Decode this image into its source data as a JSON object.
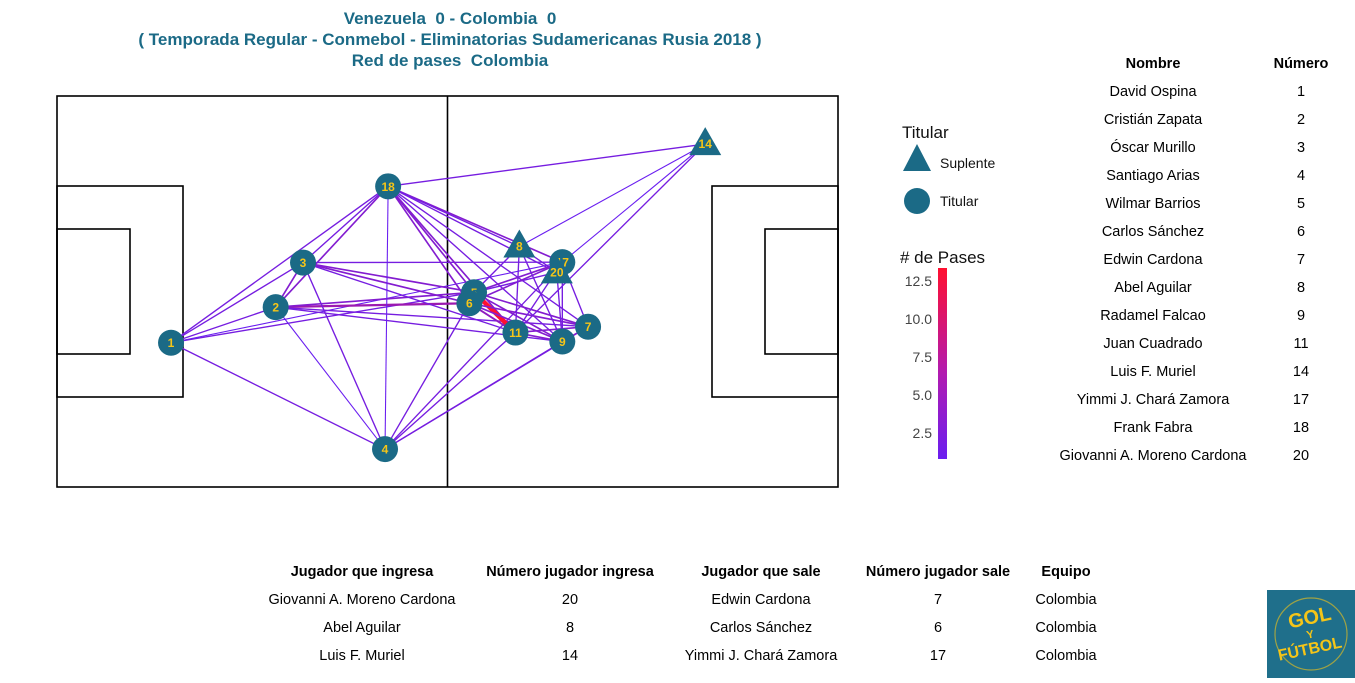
{
  "titles": {
    "line1": "Venezuela  0 - Colombia  0",
    "line2": "( Temporada Regular - Conmebol - Eliminatorias Sudamericanas Rusia 2018 )",
    "line3": "Red de pases  Colombia"
  },
  "legend": {
    "shape_title": "Titular",
    "suplente_label": "Suplente",
    "titular_label": "Titular",
    "color_title": "# de Pases",
    "ticks": [
      "12.5",
      "10.0",
      "7.5",
      "5.0",
      "2.5"
    ]
  },
  "colors": {
    "node": "#1b6a86",
    "node_label": "#f5c518",
    "title": "#1b6a86",
    "low_passes": "#6a1ef0",
    "high_passes": "#ff1030"
  },
  "roster": {
    "headers": [
      "Nombre",
      "Número"
    ],
    "rows": [
      [
        "David Ospina",
        "1"
      ],
      [
        "Cristián Zapata",
        "2"
      ],
      [
        "Óscar  Murillo",
        "3"
      ],
      [
        "Santiago Arias",
        "4"
      ],
      [
        "Wilmar Barrios",
        "5"
      ],
      [
        "Carlos Sánchez",
        "6"
      ],
      [
        "Edwin Cardona",
        "7"
      ],
      [
        "Abel Aguilar",
        "8"
      ],
      [
        "Radamel Falcao",
        "9"
      ],
      [
        "Juan Cuadrado",
        "11"
      ],
      [
        "Luis F. Muriel",
        "14"
      ],
      [
        "Yimmi J. Chará Zamora",
        "17"
      ],
      [
        "Frank Fabra",
        "18"
      ],
      [
        "Giovanni A. Moreno Cardona",
        "20"
      ]
    ]
  },
  "subs": {
    "headers": [
      "Jugador que ingresa",
      "Número jugador ingresa",
      "Jugador que sale",
      "Número jugador sale",
      "Equipo"
    ],
    "rows": [
      [
        "Giovanni A. Moreno Cardona",
        "20",
        "Edwin Cardona",
        "7",
        "Colombia"
      ],
      [
        "Abel Aguilar",
        "8",
        "Carlos Sánchez",
        "6",
        "Colombia"
      ],
      [
        "Luis F. Muriel",
        "14",
        "Yimmi J. Chará Zamora",
        "17",
        "Colombia"
      ]
    ]
  },
  "logo_text": "GOL Y FÚTBOL",
  "chart_data": {
    "type": "network",
    "pitch": {
      "length": 100,
      "width": 100
    },
    "color_scale": {
      "min": 1,
      "max": 13,
      "ticks": [
        2.5,
        5.0,
        7.5,
        10.0,
        12.5
      ]
    },
    "nodes": [
      {
        "id": "1",
        "x": 14.6,
        "y": 36.9,
        "role": "Titular"
      },
      {
        "id": "2",
        "x": 28.0,
        "y": 46.0,
        "role": "Titular"
      },
      {
        "id": "3",
        "x": 31.5,
        "y": 57.4,
        "role": "Titular"
      },
      {
        "id": "4",
        "x": 42.0,
        "y": 9.7,
        "role": "Titular"
      },
      {
        "id": "5",
        "x": 53.4,
        "y": 49.8,
        "role": "Titular"
      },
      {
        "id": "6",
        "x": 52.8,
        "y": 47.0,
        "role": "Titular"
      },
      {
        "id": "7",
        "x": 68.0,
        "y": 41.0,
        "role": "Titular"
      },
      {
        "id": "8",
        "x": 59.2,
        "y": 61.5,
        "role": "Suplente"
      },
      {
        "id": "9",
        "x": 64.7,
        "y": 37.2,
        "role": "Titular"
      },
      {
        "id": "11",
        "x": 58.7,
        "y": 39.5,
        "role": "Titular"
      },
      {
        "id": "14",
        "x": 83.0,
        "y": 87.7,
        "role": "Suplente"
      },
      {
        "id": "17",
        "x": 64.7,
        "y": 57.5,
        "role": "Titular"
      },
      {
        "id": "18",
        "x": 42.4,
        "y": 76.9,
        "role": "Titular"
      },
      {
        "id": "20",
        "x": 64.0,
        "y": 54.9,
        "role": "Suplente"
      }
    ],
    "edges": [
      {
        "from": "1",
        "to": "3",
        "passes": 2
      },
      {
        "from": "1",
        "to": "2",
        "passes": 2
      },
      {
        "from": "1",
        "to": "18",
        "passes": 2
      },
      {
        "from": "1",
        "to": "4",
        "passes": 2
      },
      {
        "from": "1",
        "to": "5",
        "passes": 2
      },
      {
        "from": "1",
        "to": "17",
        "passes": 1
      },
      {
        "from": "2",
        "to": "3",
        "passes": 3
      },
      {
        "from": "2",
        "to": "18",
        "passes": 3
      },
      {
        "from": "2",
        "to": "6",
        "passes": 5
      },
      {
        "from": "2",
        "to": "5",
        "passes": 3
      },
      {
        "from": "2",
        "to": "9",
        "passes": 2
      },
      {
        "from": "2",
        "to": "4",
        "passes": 1
      },
      {
        "from": "2",
        "to": "7",
        "passes": 2
      },
      {
        "from": "3",
        "to": "18",
        "passes": 2
      },
      {
        "from": "3",
        "to": "5",
        "passes": 3
      },
      {
        "from": "3",
        "to": "6",
        "passes": 3
      },
      {
        "from": "3",
        "to": "11",
        "passes": 2
      },
      {
        "from": "3",
        "to": "4",
        "passes": 2
      },
      {
        "from": "3",
        "to": "17",
        "passes": 2
      },
      {
        "from": "4",
        "to": "11",
        "passes": 2
      },
      {
        "from": "4",
        "to": "9",
        "passes": 2
      },
      {
        "from": "4",
        "to": "7",
        "passes": 2
      },
      {
        "from": "4",
        "to": "6",
        "passes": 2
      },
      {
        "from": "4",
        "to": "18",
        "passes": 1
      },
      {
        "from": "4",
        "to": "17",
        "passes": 2
      },
      {
        "from": "18",
        "to": "5",
        "passes": 3
      },
      {
        "from": "18",
        "to": "6",
        "passes": 3
      },
      {
        "from": "18",
        "to": "11",
        "passes": 3
      },
      {
        "from": "18",
        "to": "9",
        "passes": 2
      },
      {
        "from": "18",
        "to": "17",
        "passes": 3
      },
      {
        "from": "18",
        "to": "14",
        "passes": 2
      },
      {
        "from": "18",
        "to": "8",
        "passes": 2
      },
      {
        "from": "18",
        "to": "20",
        "passes": 2
      },
      {
        "from": "18",
        "to": "7",
        "passes": 2
      },
      {
        "from": "5",
        "to": "11",
        "passes": 13
      },
      {
        "from": "5",
        "to": "6",
        "passes": 4
      },
      {
        "from": "5",
        "to": "9",
        "passes": 3
      },
      {
        "from": "5",
        "to": "7",
        "passes": 3
      },
      {
        "from": "5",
        "to": "17",
        "passes": 3
      },
      {
        "from": "5",
        "to": "8",
        "passes": 2
      },
      {
        "from": "5",
        "to": "20",
        "passes": 2
      },
      {
        "from": "6",
        "to": "11",
        "passes": 4
      },
      {
        "from": "6",
        "to": "17",
        "passes": 3
      },
      {
        "from": "6",
        "to": "9",
        "passes": 3
      },
      {
        "from": "6",
        "to": "7",
        "passes": 3
      },
      {
        "from": "11",
        "to": "9",
        "passes": 3
      },
      {
        "from": "11",
        "to": "7",
        "passes": 3
      },
      {
        "from": "11",
        "to": "17",
        "passes": 2
      },
      {
        "from": "11",
        "to": "14",
        "passes": 2
      },
      {
        "from": "11",
        "to": "8",
        "passes": 2
      },
      {
        "from": "9",
        "to": "7",
        "passes": 3
      },
      {
        "from": "9",
        "to": "17",
        "passes": 2
      },
      {
        "from": "9",
        "to": "20",
        "passes": 2
      },
      {
        "from": "7",
        "to": "17",
        "passes": 2
      },
      {
        "from": "8",
        "to": "20",
        "passes": 2
      },
      {
        "from": "8",
        "to": "9",
        "passes": 2
      },
      {
        "from": "14",
        "to": "8",
        "passes": 1
      },
      {
        "from": "14",
        "to": "17",
        "passes": 1
      }
    ]
  }
}
